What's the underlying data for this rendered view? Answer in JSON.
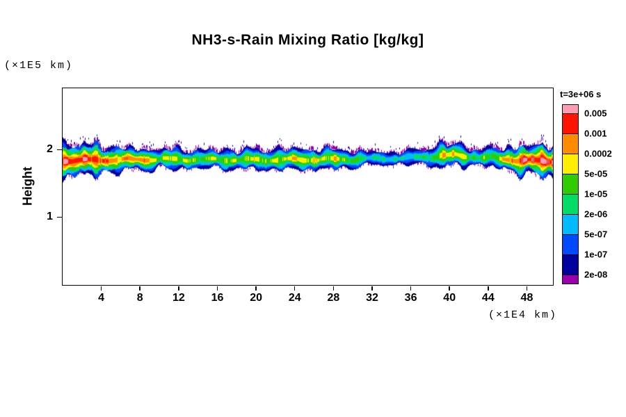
{
  "title": "NH3-s-Rain Mixing Ratio [kg/kg]",
  "annotations": {
    "y_axis_unit": "(×1E5 km)",
    "x_axis_unit": "(×1E4 km)"
  },
  "y_axis": {
    "label": "Height",
    "tick_labels": [
      "1",
      "2"
    ]
  },
  "x_axis": {
    "tick_labels": [
      "4",
      "8",
      "12",
      "16",
      "20",
      "24",
      "28",
      "32",
      "36",
      "40",
      "44",
      "48"
    ]
  },
  "legend": {
    "time": "t=3e+06 s",
    "level_labels": [
      "0.005",
      "0.001",
      "0.0002",
      "5e-05",
      "1e-05",
      "2e-06",
      "5e-07",
      "1e-07",
      "2e-08"
    ],
    "colors_top_to_bottom": [
      "#ff9bb5",
      "#ff1400",
      "#ff8c00",
      "#ffee00",
      "#2fcc00",
      "#00dd66",
      "#00bbff",
      "#0049ff",
      "#00009e",
      "#9900ab"
    ]
  },
  "chart_data": {
    "type": "heatmap",
    "title": "NH3-s-Rain Mixing Ratio [kg/kg]",
    "xlabel": "(×1E4 km)",
    "ylabel": "Height (×1E5 km)",
    "time_annotation": "t=3e+06 s",
    "x_range": [
      0,
      50.7
    ],
    "y_range": [
      0,
      2.91
    ],
    "x_ticks": [
      4,
      8,
      12,
      16,
      20,
      24,
      28,
      32,
      36,
      40,
      44,
      48
    ],
    "y_ticks": [
      1,
      2
    ],
    "levels": [
      2e-08,
      1e-07,
      5e-07,
      2e-06,
      1e-05,
      5e-05,
      0.0002,
      0.001,
      0.005
    ],
    "bin_colors_low_to_high": [
      "#9900ab",
      "#00009e",
      "#0049ff",
      "#00bbff",
      "#00dd66",
      "#2fcc00",
      "#ffee00",
      "#ff8c00",
      "#ff1400",
      "#ff9bb5"
    ],
    "band": {
      "description": "Single horizontal filled-contour rain band centered near height 1.85 (×1E5 km) spanning the full x domain; hot (red/orange) cores near the left edge, x≈8, x≈40 and the right edge; thin dark-blue section near x≈32–37.",
      "center_profile": [
        [
          0,
          1.84
        ],
        [
          10,
          1.86
        ],
        [
          20,
          1.85
        ],
        [
          30,
          1.86
        ],
        [
          36,
          1.88
        ],
        [
          40,
          1.92
        ],
        [
          44,
          1.88
        ],
        [
          48,
          1.84
        ],
        [
          50.7,
          1.83
        ]
      ],
      "half_thickness_profile": [
        [
          0,
          0.23
        ],
        [
          2,
          0.23
        ],
        [
          4,
          0.21
        ],
        [
          6,
          0.18
        ],
        [
          8,
          0.16
        ],
        [
          10,
          0.14
        ],
        [
          12,
          0.15
        ],
        [
          14,
          0.13
        ],
        [
          16,
          0.14
        ],
        [
          18,
          0.14
        ],
        [
          20,
          0.15
        ],
        [
          22,
          0.15
        ],
        [
          24,
          0.16
        ],
        [
          26,
          0.15
        ],
        [
          28,
          0.15
        ],
        [
          30,
          0.12
        ],
        [
          32,
          0.1
        ],
        [
          34,
          0.09
        ],
        [
          36,
          0.1
        ],
        [
          38,
          0.13
        ],
        [
          40,
          0.19
        ],
        [
          42,
          0.12
        ],
        [
          44,
          0.13
        ],
        [
          46,
          0.17
        ],
        [
          48,
          0.22
        ],
        [
          50.7,
          0.23
        ]
      ],
      "intensity_profile": [
        [
          0,
          0.93
        ],
        [
          2,
          0.97
        ],
        [
          4,
          0.88
        ],
        [
          6,
          0.78
        ],
        [
          8,
          0.86
        ],
        [
          9,
          0.7
        ],
        [
          10,
          0.62
        ],
        [
          12,
          0.66
        ],
        [
          14,
          0.58
        ],
        [
          16,
          0.62
        ],
        [
          18,
          0.58
        ],
        [
          20,
          0.68
        ],
        [
          22,
          0.62
        ],
        [
          24,
          0.73
        ],
        [
          26,
          0.66
        ],
        [
          28,
          0.7
        ],
        [
          30,
          0.55
        ],
        [
          32,
          0.42
        ],
        [
          34,
          0.38
        ],
        [
          36,
          0.38
        ],
        [
          38,
          0.5
        ],
        [
          40,
          0.78
        ],
        [
          41.5,
          0.62
        ],
        [
          43,
          0.5
        ],
        [
          45,
          0.62
        ],
        [
          46.5,
          0.85
        ],
        [
          48,
          0.96
        ],
        [
          49.5,
          0.98
        ],
        [
          50.7,
          0.95
        ]
      ]
    }
  }
}
